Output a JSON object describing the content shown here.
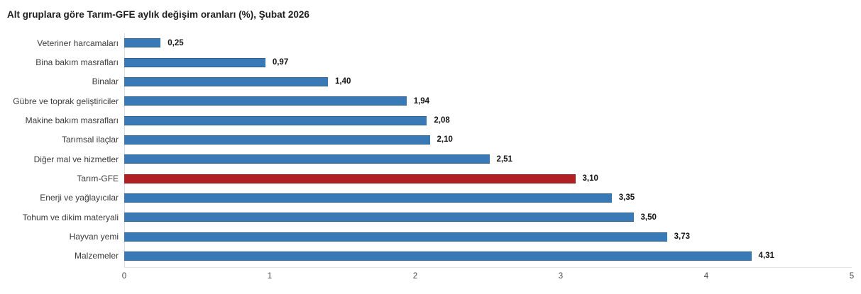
{
  "chart_data": {
    "type": "bar",
    "orientation": "horizontal",
    "title": "Alt gruplara göre Tarım-GFE aylık değişim oranları (%), Şubat 2026",
    "categories": [
      "Veteriner harcamaları",
      "Bina bakım masrafları",
      "Binalar",
      "Gübre ve toprak geliştiriciler",
      "Makine bakım masrafları",
      "Tarımsal ilaçlar",
      "Diğer mal ve hizmetler",
      "Tarım-GFE",
      "Enerji ve yağlayıcılar",
      "Tohum ve dikim materyali",
      "Hayvan yemi",
      "Malzemeler"
    ],
    "values": [
      0.25,
      0.97,
      1.4,
      1.94,
      2.08,
      2.1,
      2.51,
      3.1,
      3.35,
      3.5,
      3.73,
      4.31
    ],
    "value_labels": [
      "0,25",
      "0,97",
      "1,40",
      "1,94",
      "2,08",
      "2,10",
      "2,51",
      "3,10",
      "3,35",
      "3,50",
      "3,73",
      "4,31"
    ],
    "xlabel": "",
    "ylabel": "",
    "xlim": [
      0,
      5
    ],
    "x_ticks": [
      0,
      1,
      2,
      3,
      4,
      5
    ],
    "x_tick_labels": [
      "0",
      "1",
      "2",
      "3",
      "4",
      "5"
    ],
    "grid": false,
    "legend": false,
    "bar_color": "#3879B6",
    "highlight_color": "#B01F24",
    "highlight_index": 7,
    "highlight_category": "Tarım-GFE"
  }
}
